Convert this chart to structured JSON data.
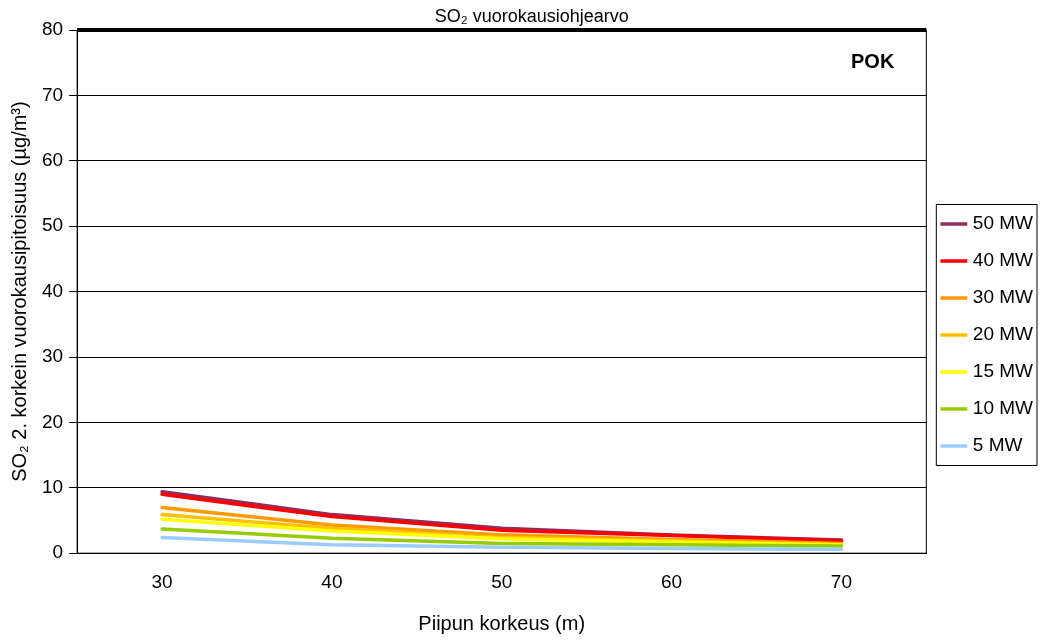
{
  "chart_data": {
    "type": "line",
    "xlabel": "Piipun korkeus (m)",
    "ylabel": "SO₂ 2. korkein vuorokausipitoisuus (µg/m³)",
    "categories": [
      "30",
      "40",
      "50",
      "60",
      "70"
    ],
    "series": [
      {
        "name": "50 MW",
        "color": "#8b2f5f",
        "values": [
          9.4,
          5.9,
          3.8,
          2.8,
          2.0
        ]
      },
      {
        "name": "40 MW",
        "color": "#ff0000",
        "values": [
          9.0,
          5.6,
          3.5,
          2.7,
          1.9
        ]
      },
      {
        "name": "30 MW",
        "color": "#ff9900",
        "values": [
          7.0,
          4.3,
          2.8,
          2.1,
          1.5
        ]
      },
      {
        "name": "20 MW",
        "color": "#ffc000",
        "values": [
          5.9,
          3.8,
          2.4,
          1.9,
          1.3
        ]
      },
      {
        "name": "15 MW",
        "color": "#ffff00",
        "values": [
          5.2,
          3.4,
          2.2,
          1.7,
          1.3
        ]
      },
      {
        "name": "10 MW",
        "color": "#99cc00",
        "values": [
          3.7,
          2.3,
          1.5,
          1.3,
          1.1
        ]
      },
      {
        "name": "5 MW",
        "color": "#99ccff",
        "values": [
          2.4,
          1.3,
          0.9,
          0.7,
          0.6
        ]
      }
    ],
    "ylim": [
      0,
      80
    ],
    "yticks": [
      0,
      10,
      20,
      30,
      40,
      50,
      60,
      70,
      80
    ],
    "grid": "y",
    "legend": "right",
    "marker": "none",
    "line_style": "solid",
    "ref_lines": [
      {
        "axis": "y",
        "value": 80,
        "label": "SO₂ vuorokausiohjearvo",
        "color": "#000000"
      }
    ],
    "annotations": [
      "POK"
    ]
  }
}
